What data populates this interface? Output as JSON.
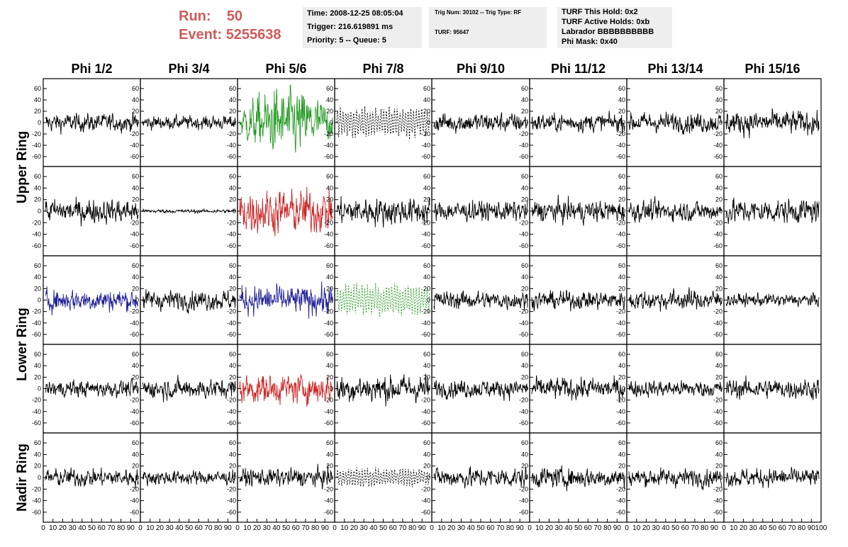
{
  "header": {
    "run_label": "Run:",
    "run_value": "50",
    "event_label": "Event:",
    "event_value": "5255638"
  },
  "info_box_1": {
    "time": "Time: 2008-12-25 08:05:04",
    "trigger": "Trigger: 216.619891 ms",
    "priority": "Priority: 5 -- Queue: 5"
  },
  "info_box_2": {
    "trig": "Trig Num: 30102 -- Trig Type: RF",
    "turf": "TURF: 95647"
  },
  "info_box_3": {
    "this_hold": "TURF This Hold: 0x2",
    "active_holds": "TURF Active Holds: 0xb",
    "labrador": "Labrador BBBBBBBBBB",
    "phi_mask": "Phi Mask: 0x40"
  },
  "chart_data": {
    "type": "line",
    "columns": [
      "Phi 1/2",
      "Phi 3/4",
      "Phi 5/6",
      "Phi 7/8",
      "Phi 9/10",
      "Phi 11/12",
      "Phi 13/14",
      "Phi 15/16"
    ],
    "ring_labels": [
      "Upper Ring",
      "Lower Ring",
      "Nadir Ring"
    ],
    "ylim": [
      -70,
      70
    ],
    "yticks": [
      -60,
      -40,
      -20,
      0,
      20,
      40,
      60
    ],
    "xlim": [
      0,
      100
    ],
    "xticks": [
      0,
      10,
      20,
      30,
      40,
      50,
      60,
      70,
      80,
      90,
      100
    ],
    "colors": {
      "default": "#000000",
      "green": "#229922",
      "red": "#cc2222",
      "blue": "#222299"
    },
    "panels": [
      [
        "a20",
        "a15",
        "g55s",
        "d30",
        "a22",
        "a20",
        "a22",
        "a26"
      ],
      [
        "a26",
        "a4",
        "r48",
        "a30",
        "a22",
        "a24",
        "a22",
        "a26"
      ],
      [
        "b25",
        "a22",
        "b32",
        "g30d",
        "a20",
        "a20",
        "a22",
        "a14"
      ],
      [
        "a18",
        "a22",
        "r32",
        "a30",
        "a20",
        "a24",
        "a18",
        "a22"
      ],
      [
        "a20",
        "a16",
        "a20",
        "d18",
        "a22",
        "a22",
        "a20",
        "a20"
      ]
    ]
  }
}
